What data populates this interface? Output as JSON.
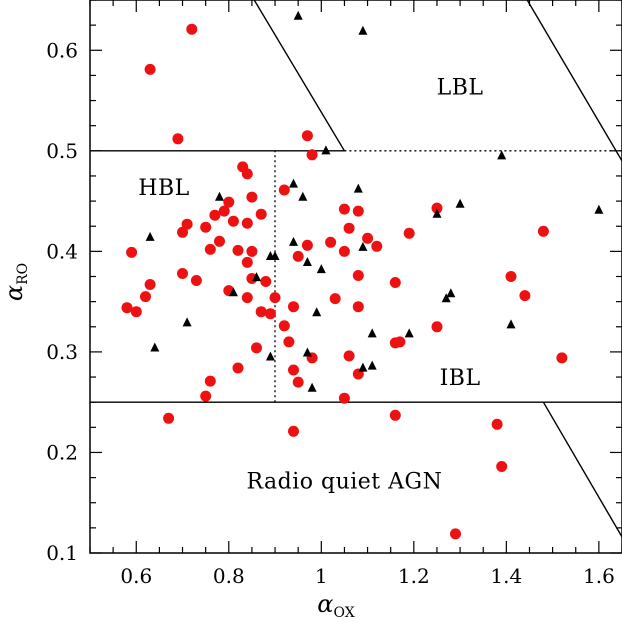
{
  "chart_data": {
    "type": "scatter",
    "title": "",
    "xlabel": "α",
    "xlabel_sub": "OX",
    "ylabel": "α",
    "ylabel_sub": "RO",
    "xlim": [
      0.5,
      1.65
    ],
    "ylim": [
      0.1,
      0.65
    ],
    "x_ticks": [
      {
        "value": 0.6,
        "label": "0.6"
      },
      {
        "value": 0.8,
        "label": "0.8"
      },
      {
        "value": 1.0,
        "label": "1"
      },
      {
        "value": 1.2,
        "label": "1.2"
      },
      {
        "value": 1.4,
        "label": "1.4"
      },
      {
        "value": 1.6,
        "label": "1.6"
      }
    ],
    "y_ticks": [
      {
        "value": 0.1,
        "label": "0.1"
      },
      {
        "value": 0.2,
        "label": "0.2"
      },
      {
        "value": 0.3,
        "label": "0.3"
      },
      {
        "value": 0.4,
        "label": "0.4"
      },
      {
        "value": 0.5,
        "label": "0.5"
      },
      {
        "value": 0.6,
        "label": "0.6"
      }
    ],
    "grid": false,
    "legend": "none",
    "region_labels": [
      {
        "text": "LBL",
        "x": 1.3,
        "y": 0.556
      },
      {
        "text": "HBL",
        "x": 0.66,
        "y": 0.456
      },
      {
        "text": "IBL",
        "x": 1.3,
        "y": 0.267
      },
      {
        "text": "Radio quiet AGN",
        "x": 1.05,
        "y": 0.164
      }
    ],
    "boundaries": [
      {
        "style": "solid",
        "points": [
          [
            0.5,
            0.5
          ],
          [
            1.05,
            0.5
          ]
        ]
      },
      {
        "style": "solid",
        "points": [
          [
            0.855,
            0.65
          ],
          [
            1.05,
            0.5
          ]
        ]
      },
      {
        "style": "solid",
        "points": [
          [
            1.445,
            0.65
          ],
          [
            1.65,
            0.49
          ]
        ]
      },
      {
        "style": "dotted",
        "points": [
          [
            1.05,
            0.5
          ],
          [
            1.65,
            0.5
          ]
        ]
      },
      {
        "style": "dotted",
        "points": [
          [
            0.9,
            0.25
          ],
          [
            0.9,
            0.5
          ]
        ]
      },
      {
        "style": "solid",
        "points": [
          [
            0.5,
            0.25
          ],
          [
            1.65,
            0.25
          ]
        ]
      },
      {
        "style": "solid",
        "points": [
          [
            1.48,
            0.25
          ],
          [
            1.65,
            0.116
          ]
        ]
      }
    ],
    "series": [
      {
        "marker": "circle",
        "color": "#ee1111",
        "points": [
          [
            0.72,
            0.621
          ],
          [
            0.63,
            0.581
          ],
          [
            0.69,
            0.512
          ],
          [
            0.97,
            0.515
          ],
          [
            0.98,
            0.496
          ],
          [
            0.83,
            0.484
          ],
          [
            0.84,
            0.477
          ],
          [
            0.85,
            0.454
          ],
          [
            0.8,
            0.449
          ],
          [
            0.87,
            0.437
          ],
          [
            0.77,
            0.436
          ],
          [
            0.79,
            0.44
          ],
          [
            0.81,
            0.43
          ],
          [
            0.84,
            0.428
          ],
          [
            0.71,
            0.427
          ],
          [
            0.7,
            0.419
          ],
          [
            0.75,
            0.424
          ],
          [
            0.76,
            0.402
          ],
          [
            0.78,
            0.41
          ],
          [
            0.82,
            0.401
          ],
          [
            0.85,
            0.4
          ],
          [
            0.84,
            0.389
          ],
          [
            0.59,
            0.399
          ],
          [
            0.63,
            0.367
          ],
          [
            0.62,
            0.355
          ],
          [
            0.58,
            0.344
          ],
          [
            0.6,
            0.34
          ],
          [
            0.7,
            0.378
          ],
          [
            0.73,
            0.371
          ],
          [
            0.8,
            0.361
          ],
          [
            0.85,
            0.373
          ],
          [
            0.88,
            0.37
          ],
          [
            0.84,
            0.354
          ],
          [
            0.87,
            0.34
          ],
          [
            0.89,
            0.338
          ],
          [
            0.9,
            0.354
          ],
          [
            0.92,
            0.461
          ],
          [
            0.97,
            0.406
          ],
          [
            0.95,
            0.395
          ],
          [
            1.02,
            0.409
          ],
          [
            1.05,
            0.442
          ],
          [
            1.06,
            0.423
          ],
          [
            1.05,
            0.4
          ],
          [
            1.08,
            0.44
          ],
          [
            1.1,
            0.413
          ],
          [
            1.08,
            0.376
          ],
          [
            1.12,
            0.405
          ],
          [
            1.16,
            0.369
          ],
          [
            1.19,
            0.418
          ],
          [
            1.25,
            0.443
          ],
          [
            1.03,
            0.353
          ],
          [
            0.94,
            0.345
          ],
          [
            1.08,
            0.345
          ],
          [
            0.92,
            0.326
          ],
          [
            0.86,
            0.304
          ],
          [
            0.93,
            0.31
          ],
          [
            0.94,
            0.282
          ],
          [
            0.82,
            0.284
          ],
          [
            0.95,
            0.27
          ],
          [
            0.98,
            0.294
          ],
          [
            1.06,
            0.296
          ],
          [
            1.08,
            0.278
          ],
          [
            0.76,
            0.271
          ],
          [
            0.75,
            0.256
          ],
          [
            0.67,
            0.234
          ],
          [
            0.94,
            0.221
          ],
          [
            1.05,
            0.254
          ],
          [
            1.16,
            0.309
          ],
          [
            1.17,
            0.31
          ],
          [
            1.25,
            0.325
          ],
          [
            1.16,
            0.237
          ],
          [
            1.38,
            0.228
          ],
          [
            1.39,
            0.186
          ],
          [
            1.41,
            0.375
          ],
          [
            1.44,
            0.356
          ],
          [
            1.48,
            0.42
          ],
          [
            1.52,
            0.294
          ],
          [
            1.29,
            0.119
          ]
        ]
      },
      {
        "marker": "triangle",
        "color": "#000000",
        "points": [
          [
            0.95,
            0.634
          ],
          [
            1.09,
            0.619
          ],
          [
            1.01,
            0.5
          ],
          [
            1.39,
            0.495
          ],
          [
            0.94,
            0.467
          ],
          [
            0.78,
            0.454
          ],
          [
            1.08,
            0.462
          ],
          [
            0.96,
            0.454
          ],
          [
            1.3,
            0.447
          ],
          [
            1.25,
            0.437
          ],
          [
            1.6,
            0.441
          ],
          [
            0.63,
            0.414
          ],
          [
            0.94,
            0.409
          ],
          [
            0.9,
            0.395
          ],
          [
            0.89,
            0.395
          ],
          [
            0.97,
            0.389
          ],
          [
            1.0,
            0.382
          ],
          [
            1.09,
            0.404
          ],
          [
            0.86,
            0.374
          ],
          [
            0.81,
            0.359
          ],
          [
            0.99,
            0.339
          ],
          [
            1.11,
            0.318
          ],
          [
            1.19,
            0.318
          ],
          [
            1.27,
            0.353
          ],
          [
            1.28,
            0.358
          ],
          [
            1.41,
            0.327
          ],
          [
            0.71,
            0.329
          ],
          [
            0.64,
            0.304
          ],
          [
            0.97,
            0.299
          ],
          [
            0.98,
            0.264
          ],
          [
            1.09,
            0.284
          ],
          [
            1.11,
            0.286
          ],
          [
            0.89,
            0.295
          ]
        ]
      }
    ]
  }
}
